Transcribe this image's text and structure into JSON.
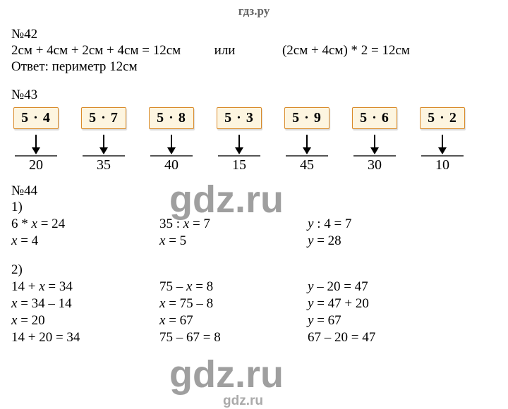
{
  "header": "гдз.ру",
  "watermarks": {
    "big1": "gdz.ru",
    "big2": "gdz.ru",
    "small": "gdz.ru"
  },
  "task42": {
    "num": "№42",
    "line1_left": "2см + 4см + 2см + 4см = 12см",
    "line1_mid": "или",
    "line1_right": "(2см + 4см) * 2 = 12см",
    "answer": "Ответ: периметр 12см"
  },
  "task43": {
    "num": "№43",
    "cards": [
      {
        "expr": "5 · 4",
        "result": "20"
      },
      {
        "expr": "5 · 7",
        "result": "35"
      },
      {
        "expr": "5 · 8",
        "result": "40"
      },
      {
        "expr": "5 · 3",
        "result": "15"
      },
      {
        "expr": "5 · 9",
        "result": "45"
      },
      {
        "expr": "5 · 6",
        "result": "30"
      },
      {
        "expr": "5 · 2",
        "result": "10"
      }
    ],
    "card_bg": "#fdf5e0",
    "card_border": "#d98b2b"
  },
  "task44": {
    "num": "№44",
    "part1_label": "1)",
    "part1": {
      "col1": [
        "6 * x = 24",
        "x = 4"
      ],
      "col2": [
        "35 : x = 7",
        "x = 5"
      ],
      "col3": [
        "y : 4 = 7",
        "y = 28"
      ]
    },
    "part2_label": "2)",
    "part2": {
      "col1": [
        "14 + x = 34",
        "x = 34 – 14",
        "x = 20",
        "14 + 20 = 34"
      ],
      "col2": [
        "75 – x = 8",
        "x = 75 – 8",
        "x = 67",
        "75 – 67 = 8"
      ],
      "col3": [
        "y – 20 = 47",
        "y = 47 + 20",
        "y = 67",
        "67 – 20 = 47"
      ]
    }
  }
}
